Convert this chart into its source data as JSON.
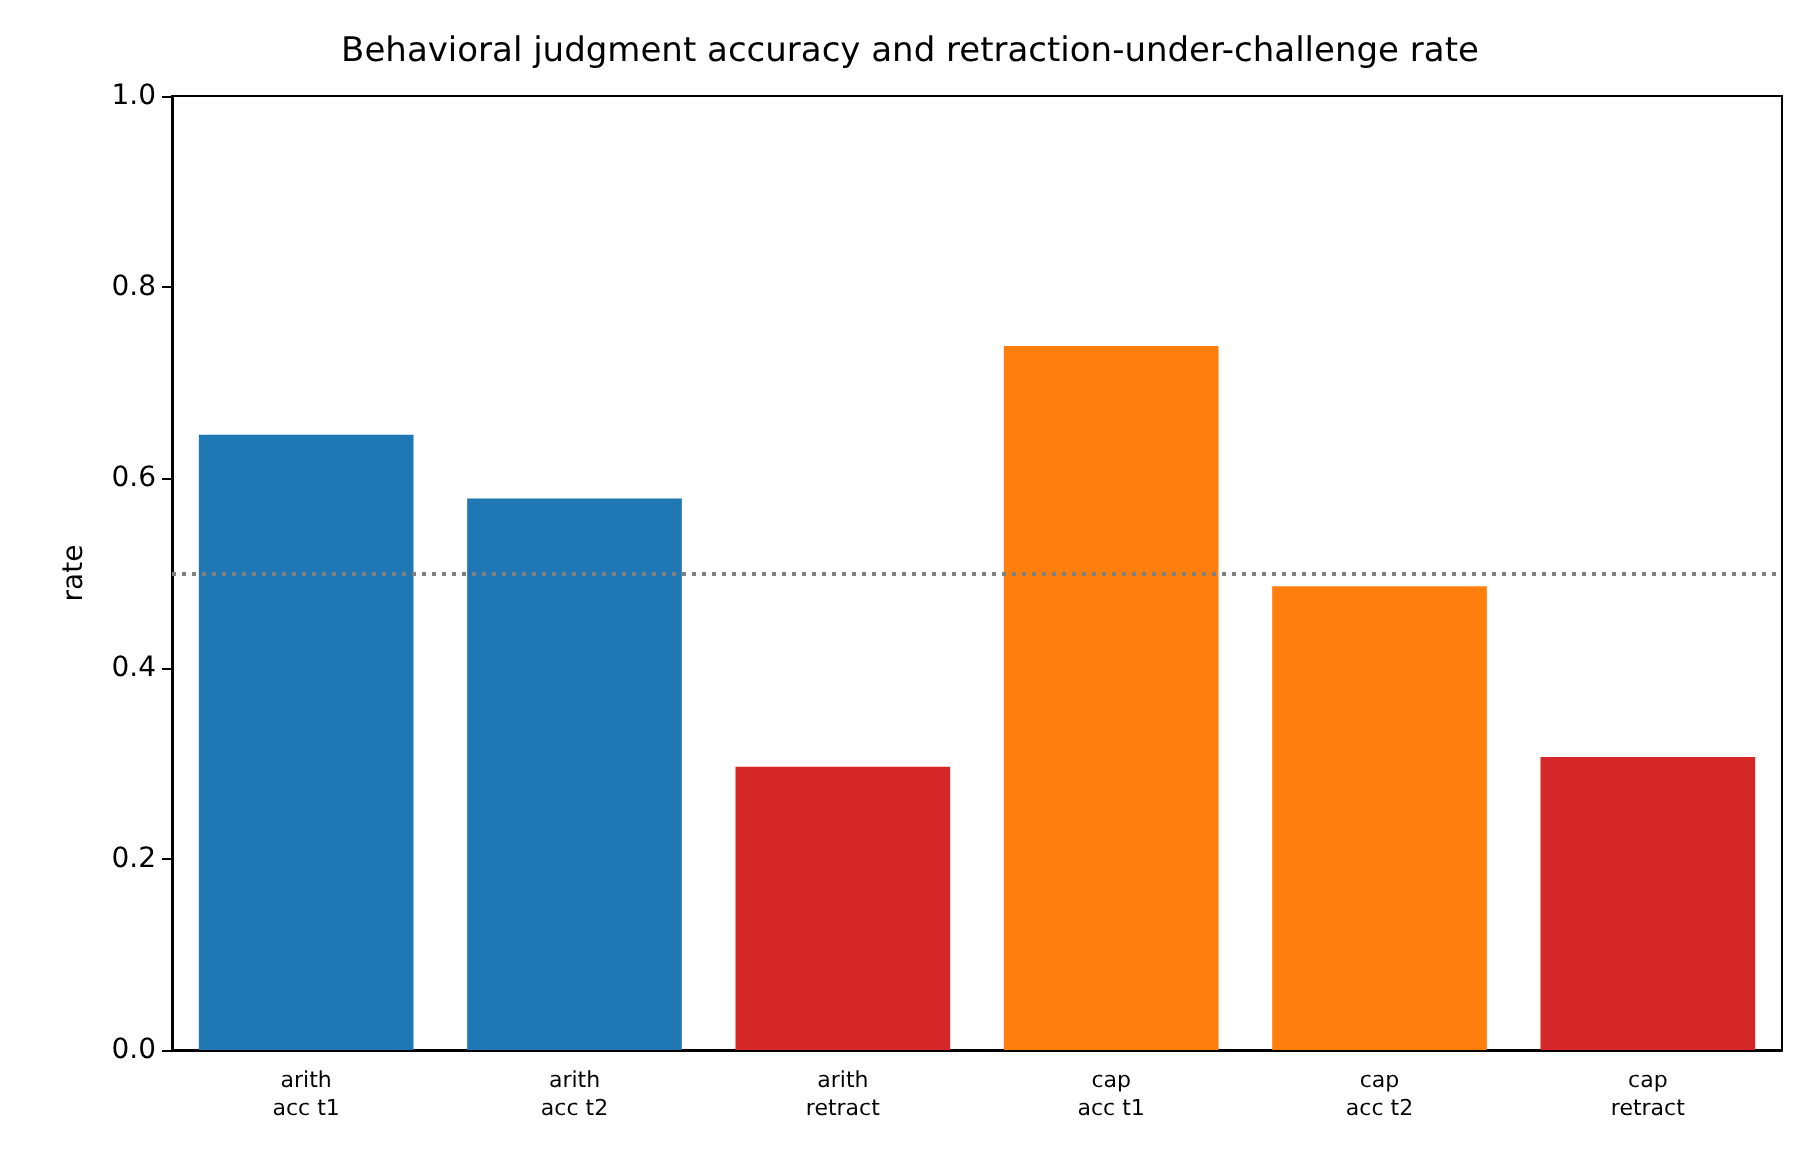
{
  "chart_data": {
    "type": "bar",
    "title": "Behavioral judgment accuracy and retraction-under-challenge rate",
    "ylabel": "rate",
    "categories": [
      "arith\nacc t1",
      "arith\nacc t2",
      "arith\nretract",
      "cap\nacc t1",
      "cap\nacc t2",
      "cap\nretract"
    ],
    "values": [
      0.645,
      0.578,
      0.297,
      0.738,
      0.486,
      0.307
    ],
    "colors": [
      "#1f77b4",
      "#1f77b4",
      "#d62728",
      "#ff7f0e",
      "#ff7f0e",
      "#d62728"
    ],
    "ylim": [
      0,
      1
    ],
    "yticks": [
      {
        "value": 0,
        "label": "0.0"
      },
      0.2,
      0.4,
      0.6,
      0.8,
      {
        "value": 1,
        "label": "1.0"
      }
    ],
    "ref_lines": [
      {
        "axis": "y",
        "value": 0.5,
        "color": "#808080",
        "line_style": "dotted"
      }
    ]
  }
}
